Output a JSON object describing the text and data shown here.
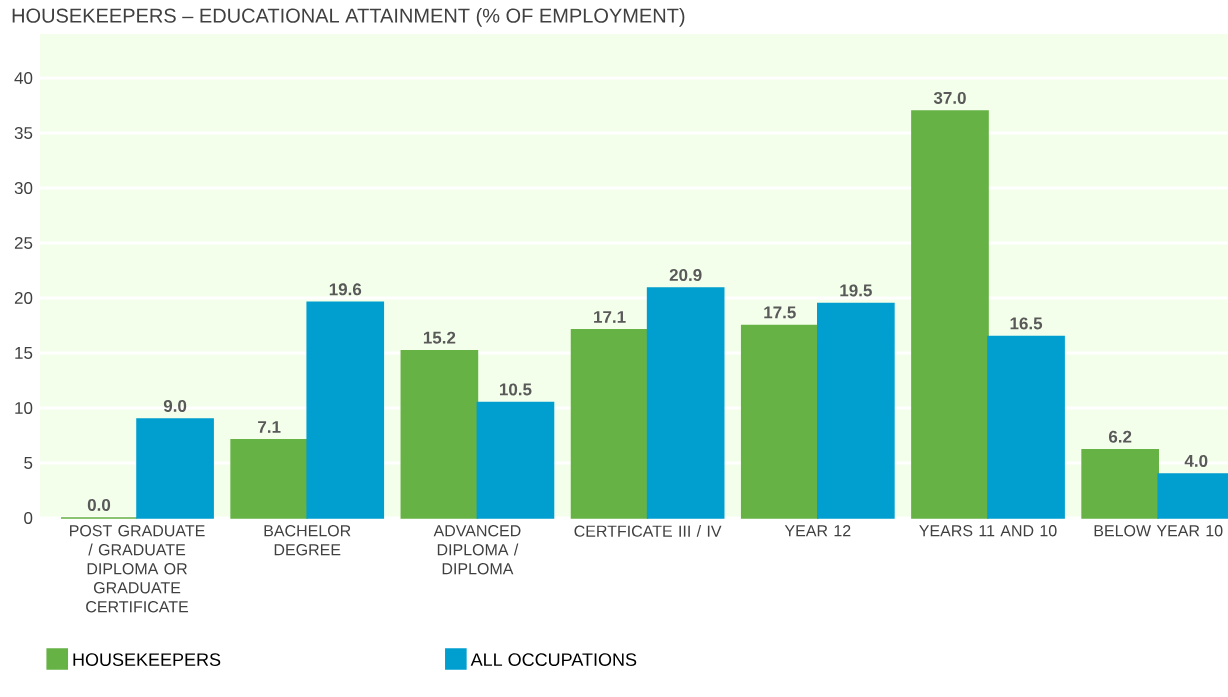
{
  "chart_data": {
    "type": "bar",
    "title": "HOUSEKEEPERS – EDUCATIONAL ATTAINMENT (% OF EMPLOYMENT)",
    "categories": [
      "POST GRADUATE / GRADUATE DIPLOMA OR GRADUATE CERTIFICATE",
      "BACHELOR DEGREE",
      "ADVANCED DIPLOMA / DIPLOMA",
      "CERTFICATE III / IV",
      "YEAR 12",
      "YEARS 11 AND 10",
      "BELOW YEAR 10"
    ],
    "series": [
      {
        "name": "HOUSEKEEPERS",
        "color": "#66b245",
        "values": [
          0.0,
          7.1,
          15.2,
          17.1,
          17.5,
          37.0,
          6.2
        ],
        "value_labels": [
          "0.0",
          "7.1",
          "15.2",
          "17.1",
          "17.5",
          "37.0",
          "6.2"
        ]
      },
      {
        "name": "ALL OCCUPATIONS",
        "color": "#009fd0",
        "values": [
          9.0,
          19.6,
          10.5,
          20.9,
          19.5,
          16.5,
          4.0
        ],
        "value_labels": [
          "9.0",
          "19.6",
          "10.5",
          "20.9",
          "19.5",
          "16.5",
          "4.0"
        ]
      }
    ],
    "ylim": [
      0,
      44
    ],
    "yticks": [
      0,
      5,
      10,
      15,
      20,
      25,
      30,
      35,
      40
    ],
    "grid": "y",
    "legend": "bottom"
  }
}
